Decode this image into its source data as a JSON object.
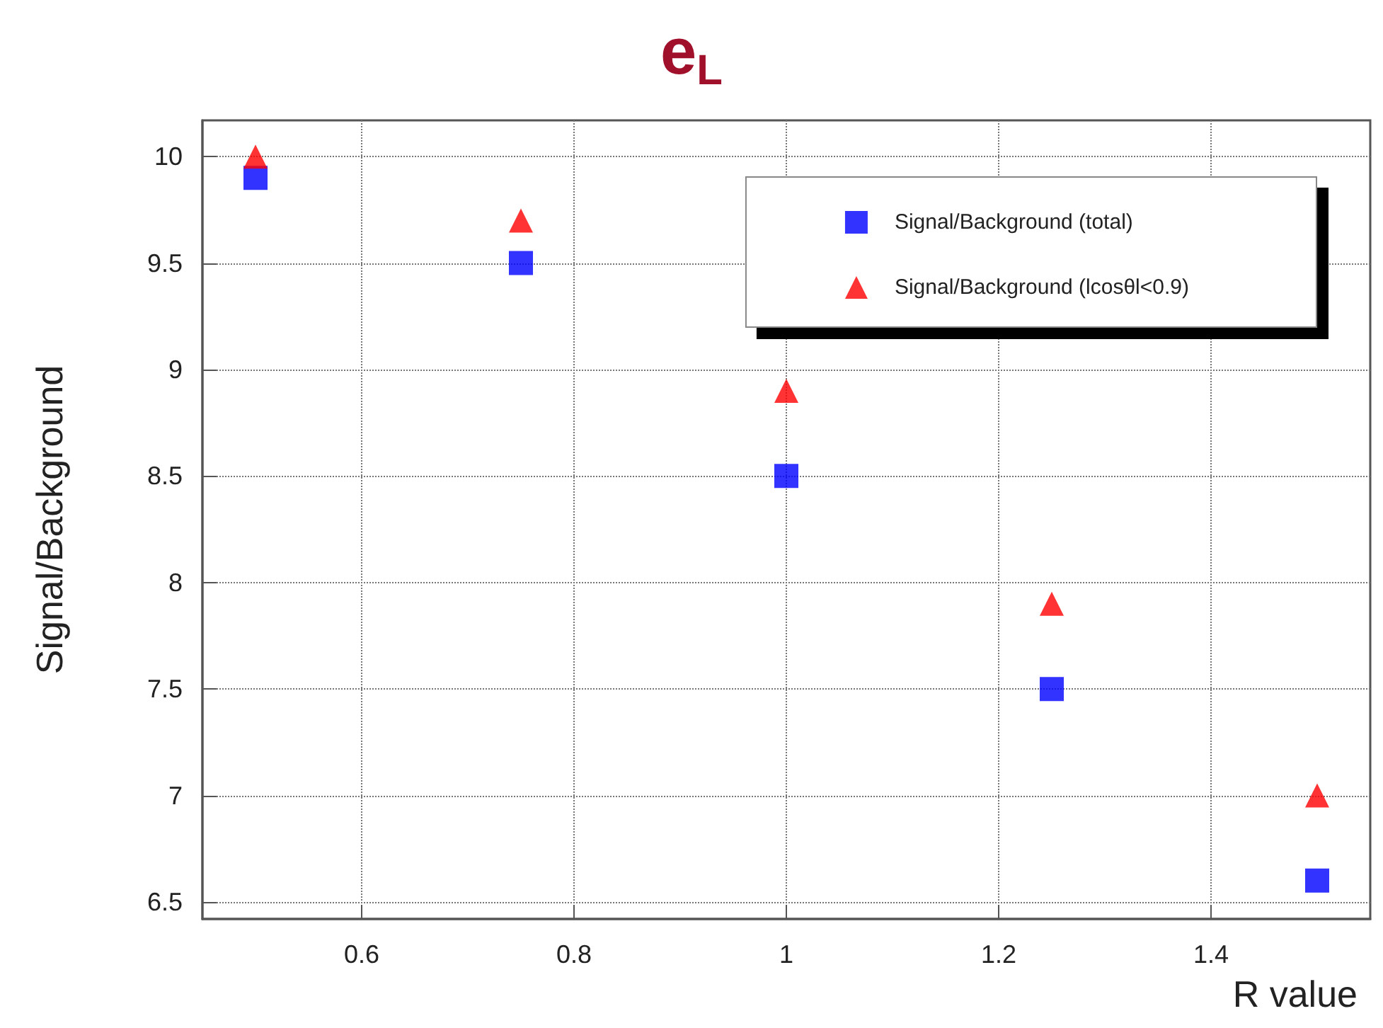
{
  "chart_data": {
    "type": "scatter",
    "title": "e$_{L}$",
    "xlabel": "R value",
    "ylabel": "Signal/Background",
    "x": [
      0.5,
      0.75,
      1.0,
      1.25,
      1.5
    ],
    "series": [
      {
        "name": "Signal/Background (total)",
        "color": "#0000ff",
        "marker": "square",
        "values": [
          9.9,
          9.5,
          8.5,
          7.5,
          6.6
        ]
      },
      {
        "name": "Signal/Background (lcosθl<0.9)",
        "color": "#ff0000",
        "marker": "triangle",
        "values": [
          10.0,
          9.7,
          8.9,
          7.9,
          7.0
        ]
      }
    ],
    "xlim": [
      0.45,
      1.55
    ],
    "xticks": [
      0.6,
      0.8,
      1,
      1.2,
      1.4
    ],
    "ylim": [
      6.42,
      10.17
    ],
    "yticks": [
      6.5,
      7,
      7.5,
      8,
      8.5,
      9,
      9.5,
      10
    ],
    "grid": true,
    "legend": "top right"
  }
}
